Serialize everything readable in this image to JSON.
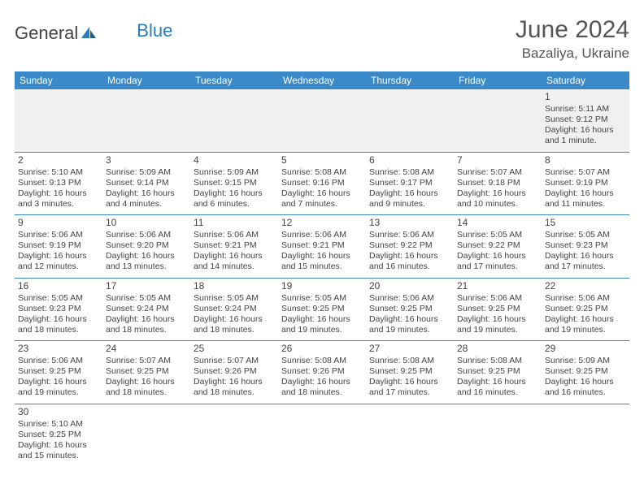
{
  "brand": {
    "part1": "General",
    "part2": "Blue"
  },
  "title": {
    "month_year": "June 2024",
    "location": "Bazaliya, Ukraine"
  },
  "colors": {
    "header_bg": "#3a89c9",
    "header_text": "#ffffff",
    "firstweek_bg": "#f0f0f0",
    "cell_border": "#3a89c9",
    "text": "#444444",
    "brand_blue": "#2a7db8"
  },
  "day_headers": [
    "Sunday",
    "Monday",
    "Tuesday",
    "Wednesday",
    "Thursday",
    "Friday",
    "Saturday"
  ],
  "weeks": [
    [
      null,
      null,
      null,
      null,
      null,
      null,
      {
        "n": "1",
        "sr": "5:11 AM",
        "ss": "9:12 PM",
        "dl": "16 hours and 1 minute."
      }
    ],
    [
      {
        "n": "2",
        "sr": "5:10 AM",
        "ss": "9:13 PM",
        "dl": "16 hours and 3 minutes."
      },
      {
        "n": "3",
        "sr": "5:09 AM",
        "ss": "9:14 PM",
        "dl": "16 hours and 4 minutes."
      },
      {
        "n": "4",
        "sr": "5:09 AM",
        "ss": "9:15 PM",
        "dl": "16 hours and 6 minutes."
      },
      {
        "n": "5",
        "sr": "5:08 AM",
        "ss": "9:16 PM",
        "dl": "16 hours and 7 minutes."
      },
      {
        "n": "6",
        "sr": "5:08 AM",
        "ss": "9:17 PM",
        "dl": "16 hours and 9 minutes."
      },
      {
        "n": "7",
        "sr": "5:07 AM",
        "ss": "9:18 PM",
        "dl": "16 hours and 10 minutes."
      },
      {
        "n": "8",
        "sr": "5:07 AM",
        "ss": "9:19 PM",
        "dl": "16 hours and 11 minutes."
      }
    ],
    [
      {
        "n": "9",
        "sr": "5:06 AM",
        "ss": "9:19 PM",
        "dl": "16 hours and 12 minutes."
      },
      {
        "n": "10",
        "sr": "5:06 AM",
        "ss": "9:20 PM",
        "dl": "16 hours and 13 minutes."
      },
      {
        "n": "11",
        "sr": "5:06 AM",
        "ss": "9:21 PM",
        "dl": "16 hours and 14 minutes."
      },
      {
        "n": "12",
        "sr": "5:06 AM",
        "ss": "9:21 PM",
        "dl": "16 hours and 15 minutes."
      },
      {
        "n": "13",
        "sr": "5:06 AM",
        "ss": "9:22 PM",
        "dl": "16 hours and 16 minutes."
      },
      {
        "n": "14",
        "sr": "5:05 AM",
        "ss": "9:22 PM",
        "dl": "16 hours and 17 minutes."
      },
      {
        "n": "15",
        "sr": "5:05 AM",
        "ss": "9:23 PM",
        "dl": "16 hours and 17 minutes."
      }
    ],
    [
      {
        "n": "16",
        "sr": "5:05 AM",
        "ss": "9:23 PM",
        "dl": "16 hours and 18 minutes."
      },
      {
        "n": "17",
        "sr": "5:05 AM",
        "ss": "9:24 PM",
        "dl": "16 hours and 18 minutes."
      },
      {
        "n": "18",
        "sr": "5:05 AM",
        "ss": "9:24 PM",
        "dl": "16 hours and 18 minutes."
      },
      {
        "n": "19",
        "sr": "5:05 AM",
        "ss": "9:25 PM",
        "dl": "16 hours and 19 minutes."
      },
      {
        "n": "20",
        "sr": "5:06 AM",
        "ss": "9:25 PM",
        "dl": "16 hours and 19 minutes."
      },
      {
        "n": "21",
        "sr": "5:06 AM",
        "ss": "9:25 PM",
        "dl": "16 hours and 19 minutes."
      },
      {
        "n": "22",
        "sr": "5:06 AM",
        "ss": "9:25 PM",
        "dl": "16 hours and 19 minutes."
      }
    ],
    [
      {
        "n": "23",
        "sr": "5:06 AM",
        "ss": "9:25 PM",
        "dl": "16 hours and 19 minutes."
      },
      {
        "n": "24",
        "sr": "5:07 AM",
        "ss": "9:25 PM",
        "dl": "16 hours and 18 minutes."
      },
      {
        "n": "25",
        "sr": "5:07 AM",
        "ss": "9:26 PM",
        "dl": "16 hours and 18 minutes."
      },
      {
        "n": "26",
        "sr": "5:08 AM",
        "ss": "9:26 PM",
        "dl": "16 hours and 18 minutes."
      },
      {
        "n": "27",
        "sr": "5:08 AM",
        "ss": "9:25 PM",
        "dl": "16 hours and 17 minutes."
      },
      {
        "n": "28",
        "sr": "5:08 AM",
        "ss": "9:25 PM",
        "dl": "16 hours and 16 minutes."
      },
      {
        "n": "29",
        "sr": "5:09 AM",
        "ss": "9:25 PM",
        "dl": "16 hours and 16 minutes."
      }
    ],
    [
      {
        "n": "30",
        "sr": "5:10 AM",
        "ss": "9:25 PM",
        "dl": "16 hours and 15 minutes."
      },
      null,
      null,
      null,
      null,
      null,
      null
    ]
  ],
  "labels": {
    "sunrise": "Sunrise: ",
    "sunset": "Sunset: ",
    "daylight": "Daylight: "
  }
}
